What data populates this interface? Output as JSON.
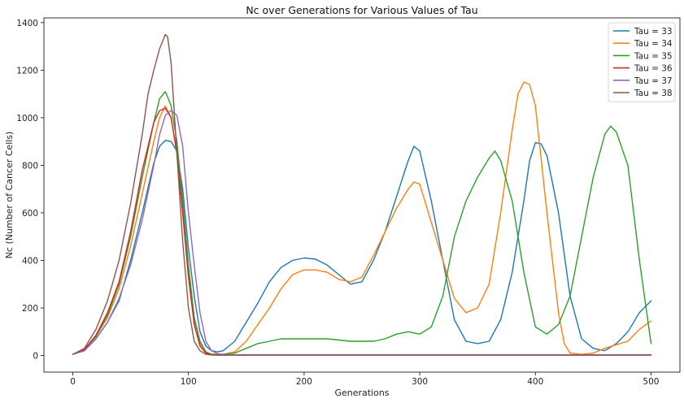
{
  "chart_data": {
    "type": "line",
    "title": "Nc over Generations for Various Values of Tau",
    "xlabel": "Generations",
    "ylabel": "Nc (Number of Cancer Cells)",
    "xlim": [
      -25,
      525
    ],
    "ylim": [
      -70,
      1420
    ],
    "xticks": [
      0,
      100,
      200,
      300,
      400,
      500
    ],
    "yticks": [
      0,
      200,
      400,
      600,
      800,
      1000,
      1200,
      1400
    ],
    "grid": false,
    "legend_position": "top-right",
    "series": [
      {
        "name": "Tau = 33",
        "color": "#1f77b4",
        "x": [
          0,
          10,
          20,
          30,
          40,
          50,
          60,
          70,
          75,
          80,
          85,
          90,
          95,
          100,
          105,
          110,
          115,
          120,
          125,
          130,
          140,
          150,
          160,
          170,
          180,
          190,
          200,
          210,
          220,
          230,
          240,
          250,
          260,
          270,
          280,
          290,
          295,
          300,
          310,
          320,
          330,
          340,
          350,
          360,
          370,
          380,
          390,
          395,
          400,
          405,
          410,
          420,
          430,
          440,
          450,
          460,
          470,
          480,
          490,
          500
        ],
        "y": [
          5,
          20,
          70,
          140,
          230,
          400,
          600,
          810,
          880,
          905,
          900,
          860,
          700,
          450,
          250,
          100,
          40,
          20,
          15,
          20,
          60,
          140,
          220,
          310,
          370,
          400,
          410,
          405,
          380,
          340,
          300,
          310,
          400,
          520,
          670,
          820,
          880,
          860,
          650,
          400,
          150,
          60,
          50,
          60,
          150,
          350,
          650,
          820,
          895,
          890,
          840,
          600,
          250,
          70,
          30,
          20,
          50,
          100,
          180,
          230
        ]
      },
      {
        "name": "Tau = 34",
        "color": "#ff7f0e",
        "x": [
          0,
          10,
          20,
          30,
          40,
          50,
          60,
          70,
          75,
          80,
          85,
          90,
          95,
          100,
          105,
          110,
          115,
          120,
          130,
          140,
          150,
          160,
          170,
          180,
          190,
          200,
          210,
          220,
          230,
          240,
          250,
          260,
          270,
          280,
          290,
          295,
          300,
          305,
          310,
          320,
          330,
          340,
          350,
          360,
          370,
          380,
          385,
          390,
          395,
          400,
          410,
          420,
          425,
          430,
          440,
          450,
          460,
          470,
          480,
          490,
          500
        ],
        "y": [
          5,
          25,
          80,
          160,
          280,
          460,
          680,
          900,
          1000,
          1050,
          1000,
          850,
          600,
          350,
          150,
          50,
          15,
          5,
          5,
          15,
          60,
          130,
          200,
          280,
          340,
          360,
          360,
          350,
          320,
          310,
          330,
          420,
          520,
          620,
          700,
          730,
          720,
          640,
          560,
          400,
          240,
          180,
          200,
          300,
          600,
          950,
          1100,
          1150,
          1140,
          1050,
          600,
          180,
          50,
          10,
          5,
          10,
          30,
          45,
          60,
          110,
          145
        ]
      },
      {
        "name": "Tau = 35",
        "color": "#2ca02c",
        "x": [
          0,
          10,
          20,
          30,
          40,
          50,
          60,
          70,
          75,
          80,
          85,
          90,
          95,
          100,
          105,
          110,
          115,
          120,
          130,
          140,
          150,
          160,
          170,
          180,
          190,
          200,
          220,
          240,
          260,
          270,
          280,
          290,
          300,
          310,
          320,
          330,
          340,
          350,
          360,
          365,
          370,
          380,
          390,
          400,
          410,
          420,
          430,
          440,
          450,
          460,
          465,
          470,
          480,
          490,
          500
        ],
        "y": [
          5,
          25,
          80,
          170,
          300,
          500,
          750,
          980,
          1080,
          1110,
          1050,
          900,
          650,
          380,
          160,
          60,
          15,
          5,
          5,
          10,
          30,
          50,
          60,
          70,
          70,
          70,
          70,
          60,
          60,
          70,
          90,
          100,
          90,
          120,
          250,
          500,
          650,
          750,
          830,
          860,
          820,
          650,
          350,
          120,
          90,
          130,
          250,
          500,
          750,
          930,
          965,
          940,
          800,
          400,
          50
        ]
      },
      {
        "name": "Tau = 36",
        "color": "#d62728",
        "x": [
          0,
          10,
          20,
          30,
          40,
          50,
          60,
          70,
          75,
          80,
          85,
          90,
          95,
          100,
          105,
          110,
          115,
          120,
          125,
          130,
          200,
          300,
          400,
          500
        ],
        "y": [
          5,
          25,
          85,
          180,
          310,
          520,
          780,
          980,
          1030,
          1040,
          1000,
          850,
          600,
          330,
          130,
          40,
          10,
          3,
          2,
          2,
          2,
          2,
          2,
          2
        ]
      },
      {
        "name": "Tau = 37",
        "color": "#9467bd",
        "x": [
          0,
          10,
          20,
          30,
          40,
          50,
          60,
          70,
          75,
          80,
          85,
          90,
          95,
          100,
          105,
          110,
          115,
          120,
          125,
          130,
          135,
          140,
          200,
          300,
          400,
          500
        ],
        "y": [
          5,
          20,
          70,
          140,
          240,
          380,
          570,
          800,
          930,
          1010,
          1030,
          1010,
          880,
          600,
          380,
          180,
          60,
          20,
          8,
          4,
          3,
          3,
          3,
          3,
          3,
          3
        ]
      },
      {
        "name": "Tau = 38",
        "color": "#8c564b",
        "x": [
          0,
          10,
          20,
          30,
          40,
          50,
          60,
          65,
          70,
          75,
          80,
          82,
          85,
          90,
          95,
          100,
          105,
          110,
          115,
          120,
          125,
          130,
          200,
          300,
          400,
          500
        ],
        "y": [
          5,
          30,
          110,
          230,
          400,
          640,
          930,
          1100,
          1200,
          1290,
          1350,
          1340,
          1230,
          850,
          480,
          200,
          60,
          20,
          5,
          2,
          1,
          1,
          1,
          1,
          1,
          1
        ]
      }
    ]
  }
}
